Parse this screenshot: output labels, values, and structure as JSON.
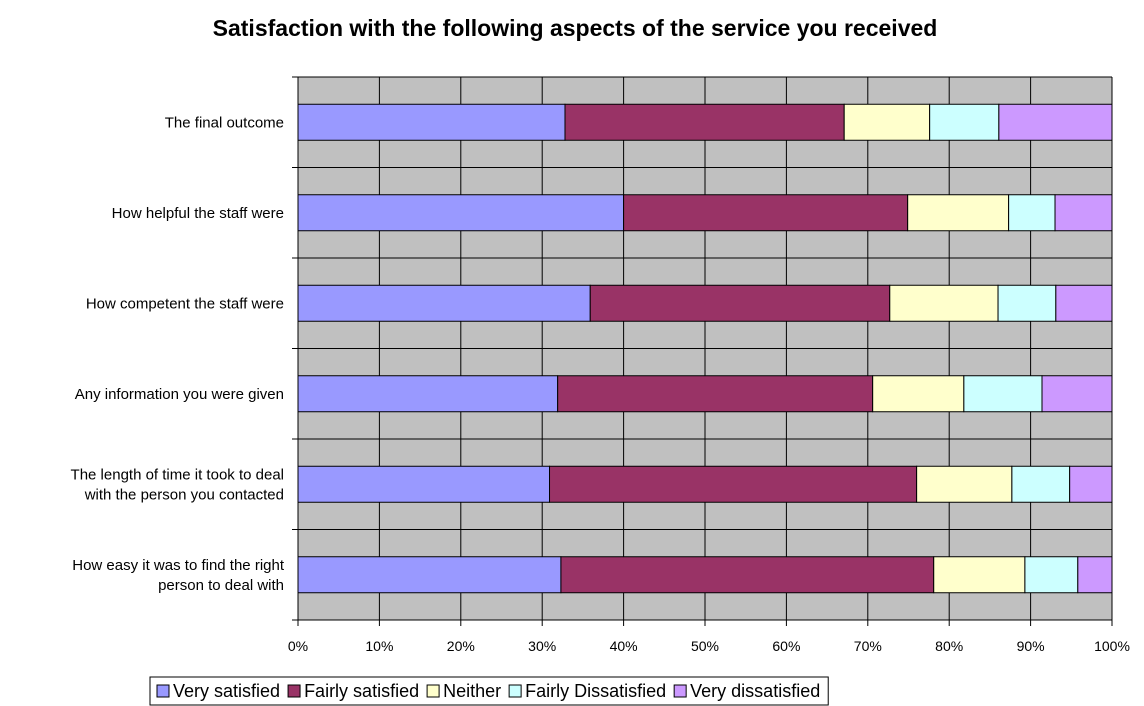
{
  "chart_data": {
    "type": "bar",
    "orientation": "horizontal",
    "stacked": "percent",
    "title": "Satisfaction with the following aspects of the service you received",
    "xlabel": "",
    "ylabel": "",
    "xlim": [
      0,
      100
    ],
    "x_ticks": [
      "0%",
      "10%",
      "20%",
      "30%",
      "40%",
      "50%",
      "60%",
      "70%",
      "80%",
      "90%",
      "100%"
    ],
    "grid": true,
    "legend_position": "bottom",
    "categories": [
      [
        "The final outcome"
      ],
      [
        "How helpful the staff were"
      ],
      [
        "How competent the staff were"
      ],
      [
        "Any information you were given"
      ],
      [
        "The length of time it took to deal",
        "with the person you contacted"
      ],
      [
        "How easy it was to find the right",
        "person to deal with"
      ]
    ],
    "series": [
      {
        "name": "Very satisfied",
        "color": "#9999ff",
        "values": [
          32.8,
          40.0,
          35.9,
          31.9,
          30.9,
          32.3
        ]
      },
      {
        "name": "Fairly satisfied",
        "color": "#993366",
        "values": [
          34.3,
          34.9,
          36.8,
          38.7,
          45.1,
          45.8
        ]
      },
      {
        "name": "Neither",
        "color": "#ffffcc",
        "values": [
          10.5,
          12.4,
          13.3,
          11.2,
          11.7,
          11.2
        ]
      },
      {
        "name": "Fairly Dissatisfied",
        "color": "#ccffff",
        "values": [
          8.5,
          5.7,
          7.1,
          9.6,
          7.1,
          6.5
        ]
      },
      {
        "name": "Very dissatisfied",
        "color": "#cc99ff",
        "values": [
          13.9,
          7.0,
          6.9,
          8.6,
          5.2,
          4.2
        ]
      }
    ],
    "plot_background": "#c0c0c0"
  }
}
